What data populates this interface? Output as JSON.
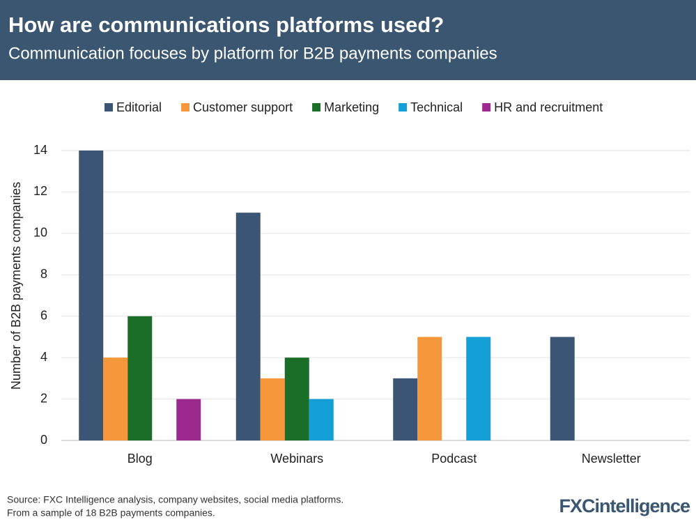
{
  "chart_data": {
    "type": "bar",
    "title": "How are communications platforms used?",
    "subtitle": "Communication focuses by platform for B2B payments companies",
    "y_label": "Number of B2B payments companies",
    "categories": [
      "Blog",
      "Webinars",
      "Podcast",
      "Newsletter"
    ],
    "series": [
      {
        "name": "Editorial",
        "color": "#3a5674",
        "values": [
          14,
          11,
          3,
          5
        ]
      },
      {
        "name": "Customer support",
        "color": "#f7973c",
        "values": [
          4,
          3,
          5,
          0
        ]
      },
      {
        "name": "Marketing",
        "color": "#1b6e28",
        "values": [
          6,
          4,
          0,
          0
        ]
      },
      {
        "name": "Technical",
        "color": "#149fd8",
        "values": [
          0,
          2,
          5,
          0
        ]
      },
      {
        "name": "HR and recruitment",
        "color": "#9c2a8e",
        "values": [
          2,
          0,
          0,
          0
        ]
      }
    ],
    "ylim": [
      0,
      14
    ],
    "yticks": [
      0,
      2,
      4,
      6,
      8,
      10,
      12,
      14
    ],
    "grid": true,
    "legend": "top",
    "source": [
      "Source: FXC Intelligence analysis, company websites, social media platforms.",
      "From a sample of 18 B2B payments companies."
    ],
    "logo": "FXCintelligence"
  }
}
